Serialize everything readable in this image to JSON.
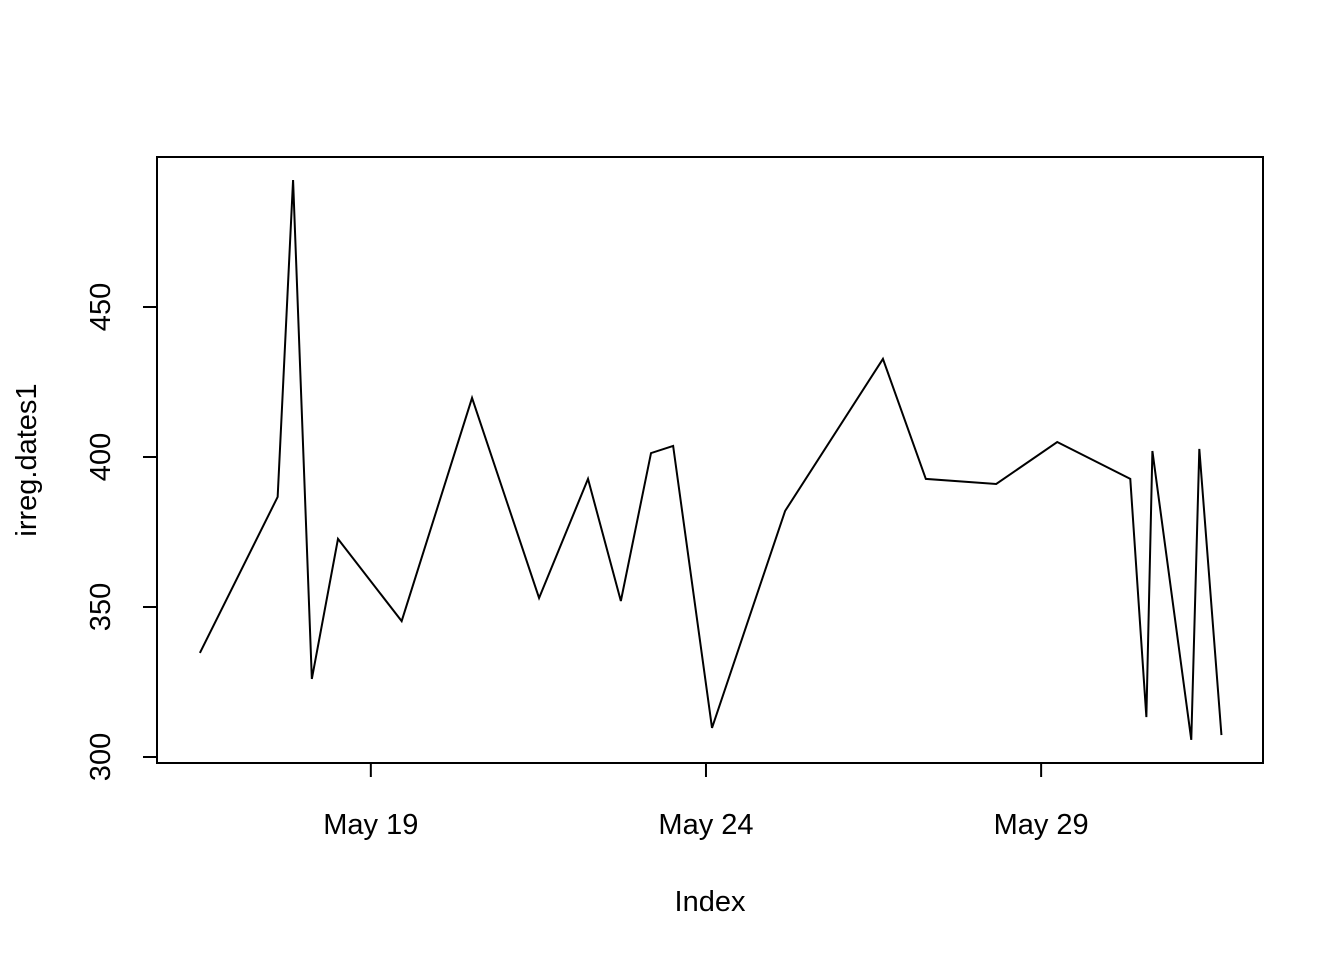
{
  "chart_data": {
    "type": "line",
    "xlabel": "Index",
    "ylabel": "irreg.dates1",
    "x": [
      16.45,
      17.61,
      17.84,
      18.12,
      18.51,
      19.46,
      20.51,
      21.51,
      22.24,
      22.73,
      23.18,
      23.51,
      24.09,
      25.18,
      26.64,
      27.28,
      28.33,
      29.24,
      30.33,
      30.57,
      30.66,
      31.24,
      31.36,
      31.69
    ],
    "values": [
      334.7,
      386.7,
      492.3,
      326,
      372.7,
      345.3,
      419.7,
      353,
      392.7,
      352,
      401.3,
      403.7,
      309.7,
      382,
      432.7,
      392.7,
      391,
      405,
      392.7,
      313.3,
      402,
      305.7,
      402.7,
      307.3
    ],
    "color": "#000000",
    "xlim": [
      15.81,
      32.31
    ],
    "xticks": [
      {
        "value": 19,
        "label": "May 19"
      },
      {
        "value": 24,
        "label": "May 24"
      },
      {
        "value": 29,
        "label": "May 29"
      }
    ],
    "ylim": [
      298,
      500
    ],
    "yticks": [
      300,
      350,
      400,
      450
    ]
  }
}
